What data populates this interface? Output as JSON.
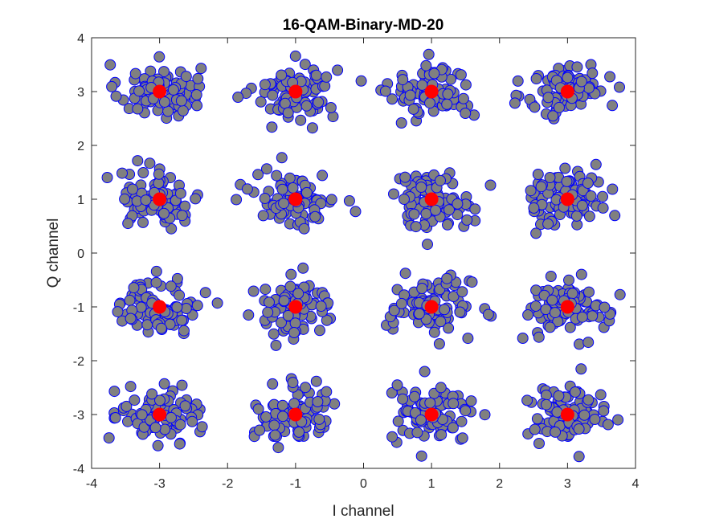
{
  "chart_data": {
    "type": "scatter",
    "title": "16-QAM-Binary-MD-20",
    "xlabel": "I channel",
    "ylabel": "Q channel",
    "xlim": [
      -4,
      4
    ],
    "ylim": [
      -4,
      4
    ],
    "xticks": [
      "-4",
      "-3",
      "-2",
      "-1",
      "0",
      "1",
      "2",
      "3",
      "4"
    ],
    "yticks": [
      "-4",
      "-3",
      "-2",
      "-1",
      "0",
      "1",
      "2",
      "3",
      "4"
    ],
    "grid": false,
    "legend": "none",
    "colors": {
      "received_fill": "#808080",
      "received_edge": "#0000ff",
      "reference_fill": "#ff0000"
    },
    "series": [
      {
        "role": "received",
        "cluster_centers": [
          [
            -3,
            3
          ],
          [
            -1,
            3
          ],
          [
            1,
            3
          ],
          [
            3,
            3
          ],
          [
            -3,
            1
          ],
          [
            -1,
            1
          ],
          [
            1,
            1
          ],
          [
            3,
            1
          ],
          [
            -3,
            -1
          ],
          [
            -1,
            -1
          ],
          [
            1,
            -1
          ],
          [
            3,
            -1
          ],
          [
            -3,
            -3
          ],
          [
            -1,
            -3
          ],
          [
            1,
            -3
          ],
          [
            3,
            -3
          ]
        ],
        "points_per_cluster": 90,
        "approx_spread": 0.3
      },
      {
        "role": "reference",
        "points": [
          [
            -3,
            3
          ],
          [
            -1,
            3
          ],
          [
            1,
            3
          ],
          [
            3,
            3
          ],
          [
            -3,
            1
          ],
          [
            -1,
            1
          ],
          [
            1,
            1
          ],
          [
            3,
            1
          ],
          [
            -3,
            -1
          ],
          [
            -1,
            -1
          ],
          [
            1,
            -1
          ],
          [
            3,
            -1
          ],
          [
            -3,
            -3
          ],
          [
            -1,
            -3
          ],
          [
            1,
            -3
          ],
          [
            3,
            -3
          ]
        ]
      }
    ]
  }
}
